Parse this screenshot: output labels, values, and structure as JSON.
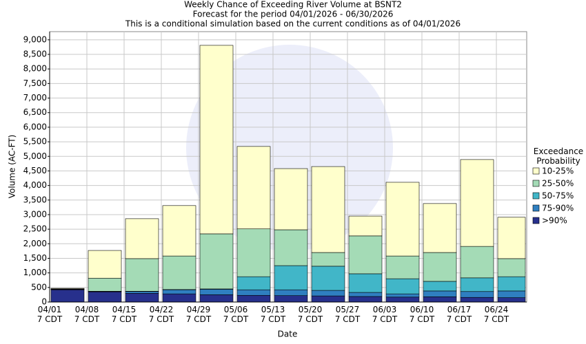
{
  "chart_data": {
    "type": "stacked_bar",
    "title": "Weekly Chance of Exceeding River Volume at BSNT2",
    "subtitle": [
      "Forecast for the period 04/01/2026 - 06/30/2026",
      "This is a conditional simulation based on the current conditions as of 04/01/2026"
    ],
    "x_label": "Date",
    "y_label": "Volume (AC-FT)",
    "legend_title": "Exceedance Probability",
    "legend_position": "right",
    "categories": [
      "04/01 7 CDT",
      "04/08 7 CDT",
      "04/15 7 CDT",
      "04/22 7 CDT",
      "04/29 7 CDT",
      "05/06 7 CDT",
      "05/13 7 CDT",
      "05/20 7 CDT",
      "05/27 7 CDT",
      "06/03 7 CDT",
      "06/10 7 CDT",
      "06/17 7 CDT",
      "06/24 7 CDT"
    ],
    "series": [
      {
        "name": ">90%",
        "color": "#27308c",
        "values": [
          420,
          350,
          300,
          280,
          250,
          230,
          220,
          210,
          190,
          170,
          180,
          160,
          150
        ]
      },
      {
        "name": "75-90%",
        "color": "#2f7fc0",
        "values": [
          10,
          10,
          60,
          140,
          190,
          190,
          200,
          190,
          140,
          110,
          200,
          200,
          230
        ]
      },
      {
        "name": "50-75%",
        "color": "#41b6c8",
        "values": [
          10,
          10,
          10,
          10,
          10,
          450,
          830,
          830,
          640,
          520,
          330,
          470,
          490
        ]
      },
      {
        "name": "25-50%",
        "color": "#a4dbb6",
        "values": [
          10,
          450,
          1120,
          1150,
          1890,
          1640,
          1230,
          470,
          1300,
          780,
          990,
          1080,
          620
        ]
      },
      {
        "name": "10-25%",
        "color": "#ffffcc",
        "values": [
          20,
          950,
          1370,
          1730,
          6470,
          2830,
          2100,
          2950,
          680,
          2530,
          1680,
          2980,
          1420
        ]
      }
    ],
    "ylim": [
      0,
      9280
    ],
    "yticks": [
      0,
      500,
      {
        "value": 1000,
        "label": "1,000"
      },
      {
        "value": 1500,
        "label": "1,500"
      },
      {
        "value": 2000,
        "label": "2,000"
      },
      {
        "value": 2500,
        "label": "2,500"
      },
      {
        "value": 3000,
        "label": "3,000"
      },
      {
        "value": 3500,
        "label": "3,500"
      },
      {
        "value": 4000,
        "label": "4,000"
      },
      {
        "value": 4500,
        "label": "4,500"
      },
      {
        "value": 5000,
        "label": "5,000"
      },
      {
        "value": 5500,
        "label": "5,500"
      },
      {
        "value": 6000,
        "label": "6,000"
      },
      {
        "value": 6500,
        "label": "6,500"
      },
      {
        "value": 7000,
        "label": "7,000"
      },
      {
        "value": 7500,
        "label": "7,500"
      },
      {
        "value": 8000,
        "label": "8,000"
      },
      {
        "value": 8500,
        "label": "8,500"
      },
      {
        "value": 9000,
        "label": "9,000"
      }
    ],
    "grid": true
  }
}
